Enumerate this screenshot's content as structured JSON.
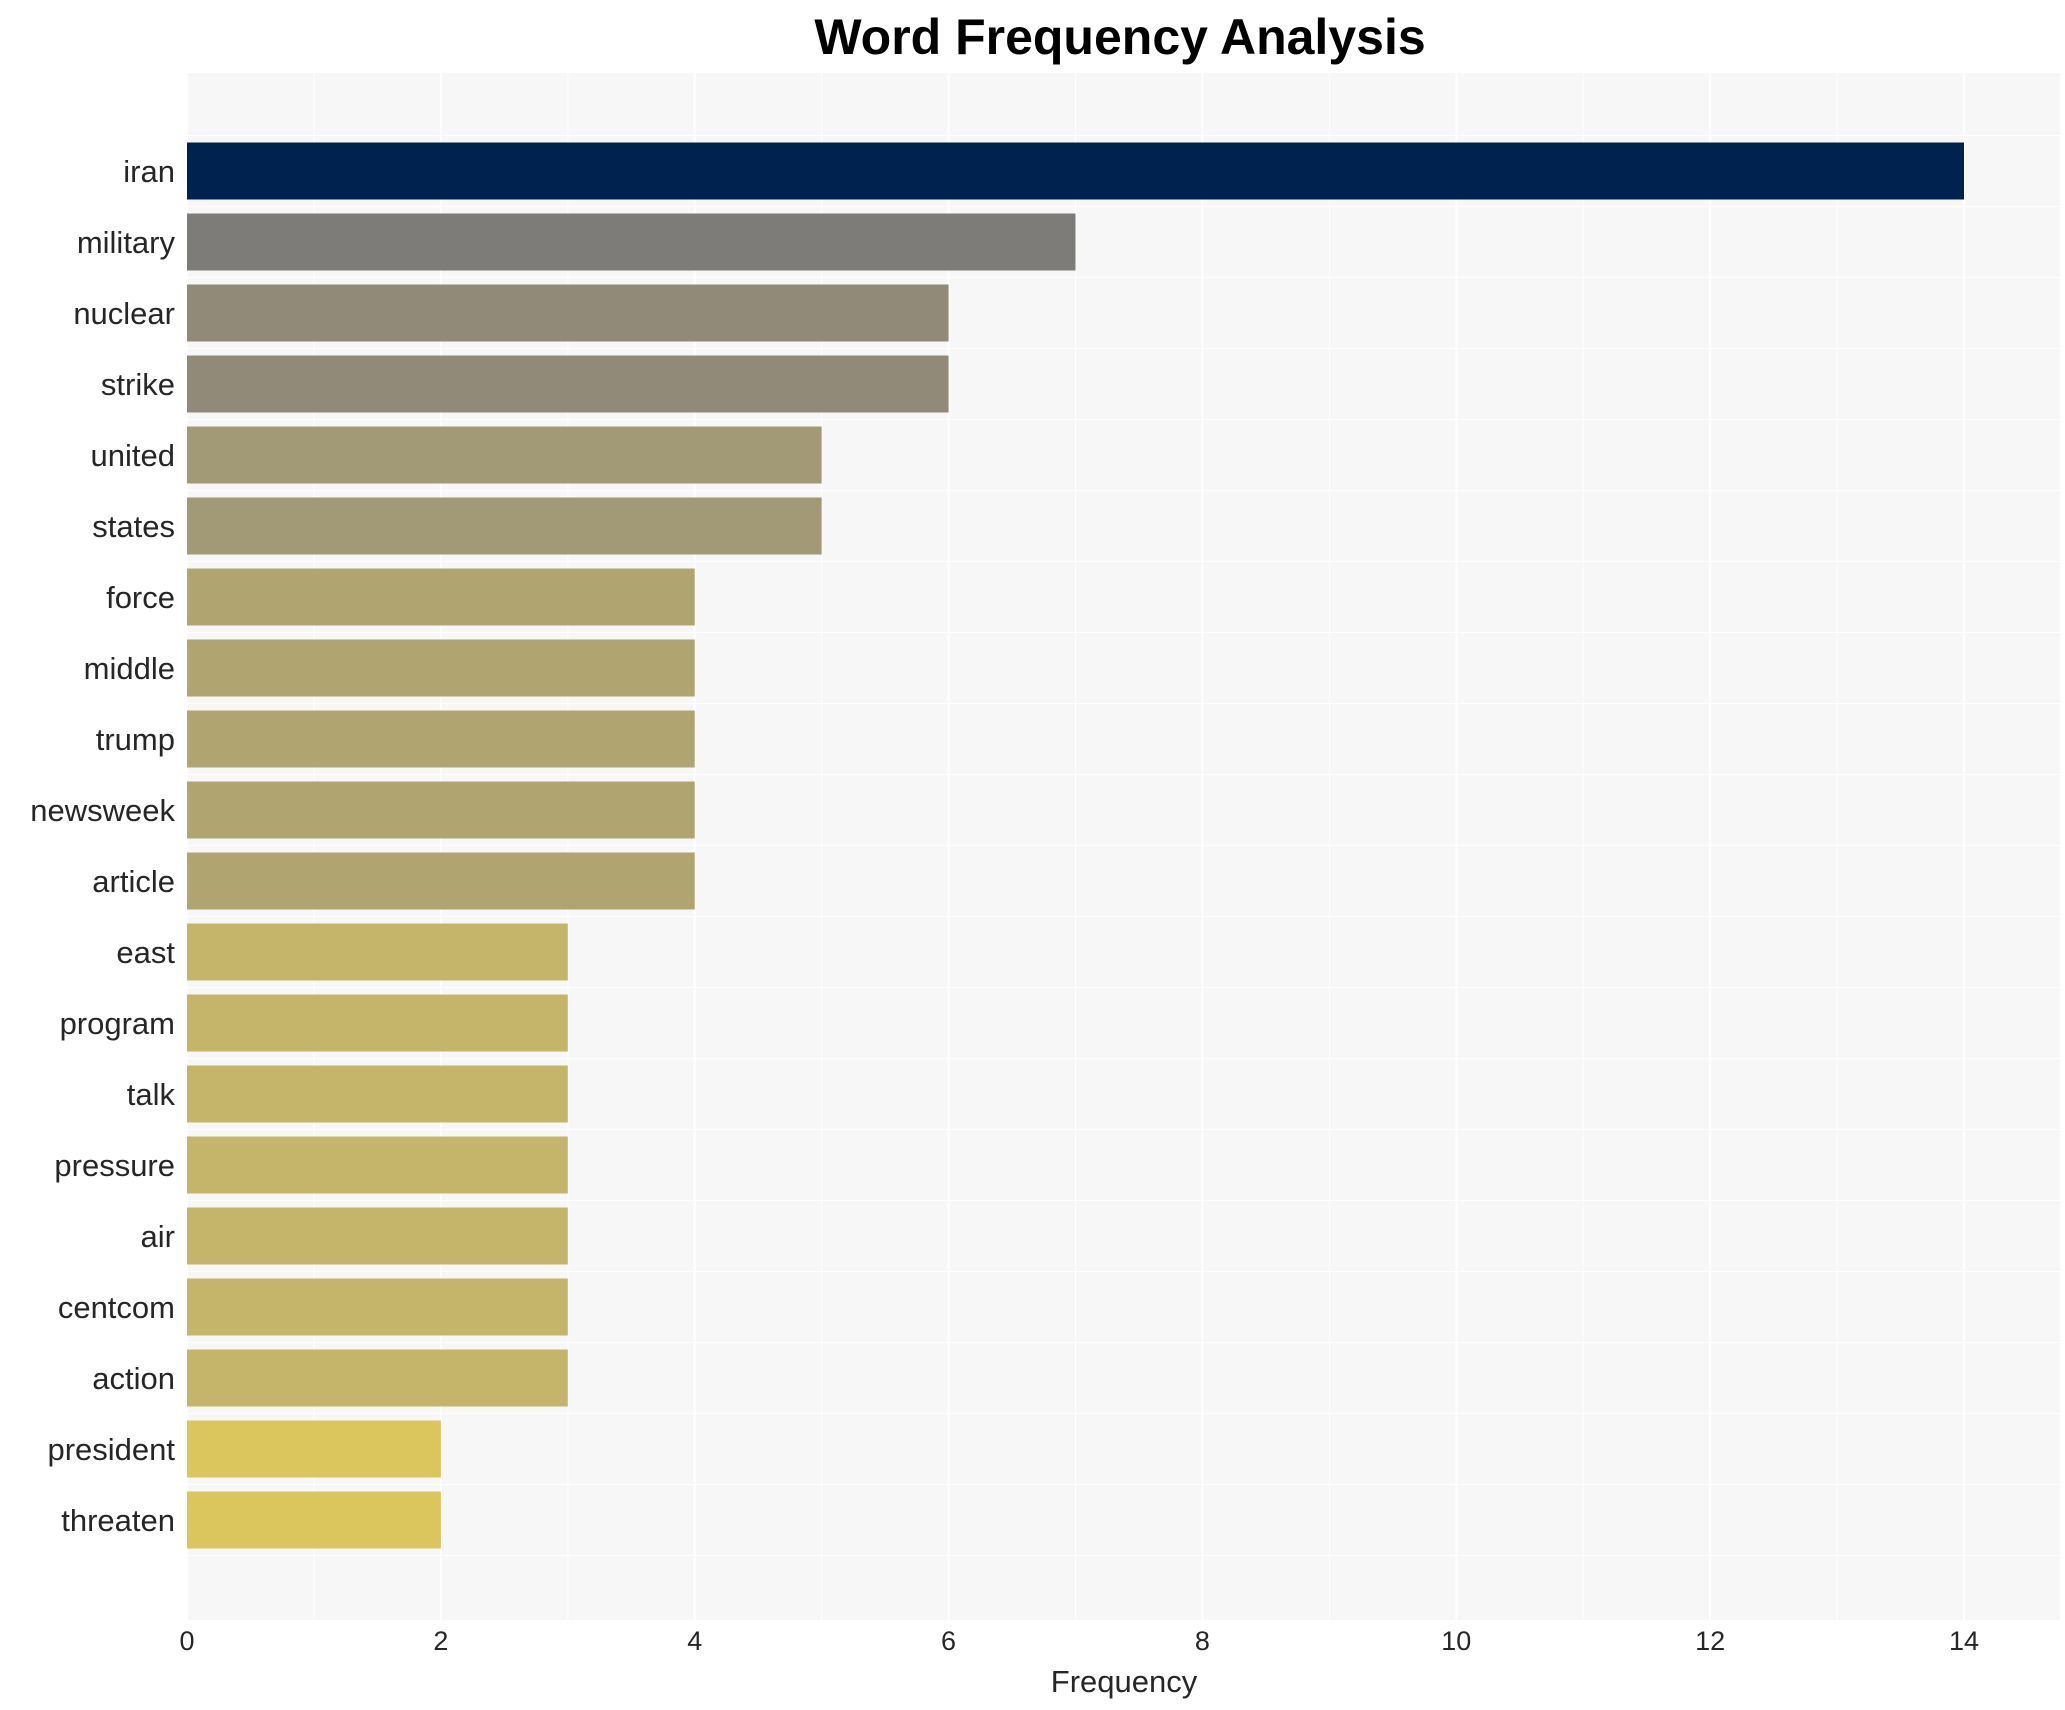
{
  "chart_data": {
    "type": "bar",
    "orientation": "horizontal",
    "title": "Word Frequency Analysis",
    "xlabel": "Frequency",
    "ylabel": "",
    "xlim": [
      0,
      14.7
    ],
    "xticks": [
      0,
      2,
      4,
      6,
      8,
      10,
      12,
      14
    ],
    "grid": true,
    "categories": [
      "iran",
      "military",
      "nuclear",
      "strike",
      "united",
      "states",
      "force",
      "middle",
      "trump",
      "newsweek",
      "article",
      "east",
      "program",
      "talk",
      "pressure",
      "air",
      "centcom",
      "action",
      "president",
      "threaten"
    ],
    "values": [
      14,
      7,
      6,
      6,
      5,
      5,
      4,
      4,
      4,
      4,
      4,
      3,
      3,
      3,
      3,
      3,
      3,
      3,
      2,
      2
    ],
    "colors": [
      "#00224e",
      "#7d7c78",
      "#918a79",
      "#918a79",
      "#a29a77",
      "#a29a77",
      "#b0a570",
      "#b0a570",
      "#b0a570",
      "#b0a570",
      "#b0a570",
      "#c4b56b",
      "#c4b56b",
      "#c4b56b",
      "#c4b56b",
      "#c4b56b",
      "#c4b56b",
      "#c4b56b",
      "#dbc55d",
      "#dbc55d"
    ],
    "background": "#f7f7f7"
  }
}
